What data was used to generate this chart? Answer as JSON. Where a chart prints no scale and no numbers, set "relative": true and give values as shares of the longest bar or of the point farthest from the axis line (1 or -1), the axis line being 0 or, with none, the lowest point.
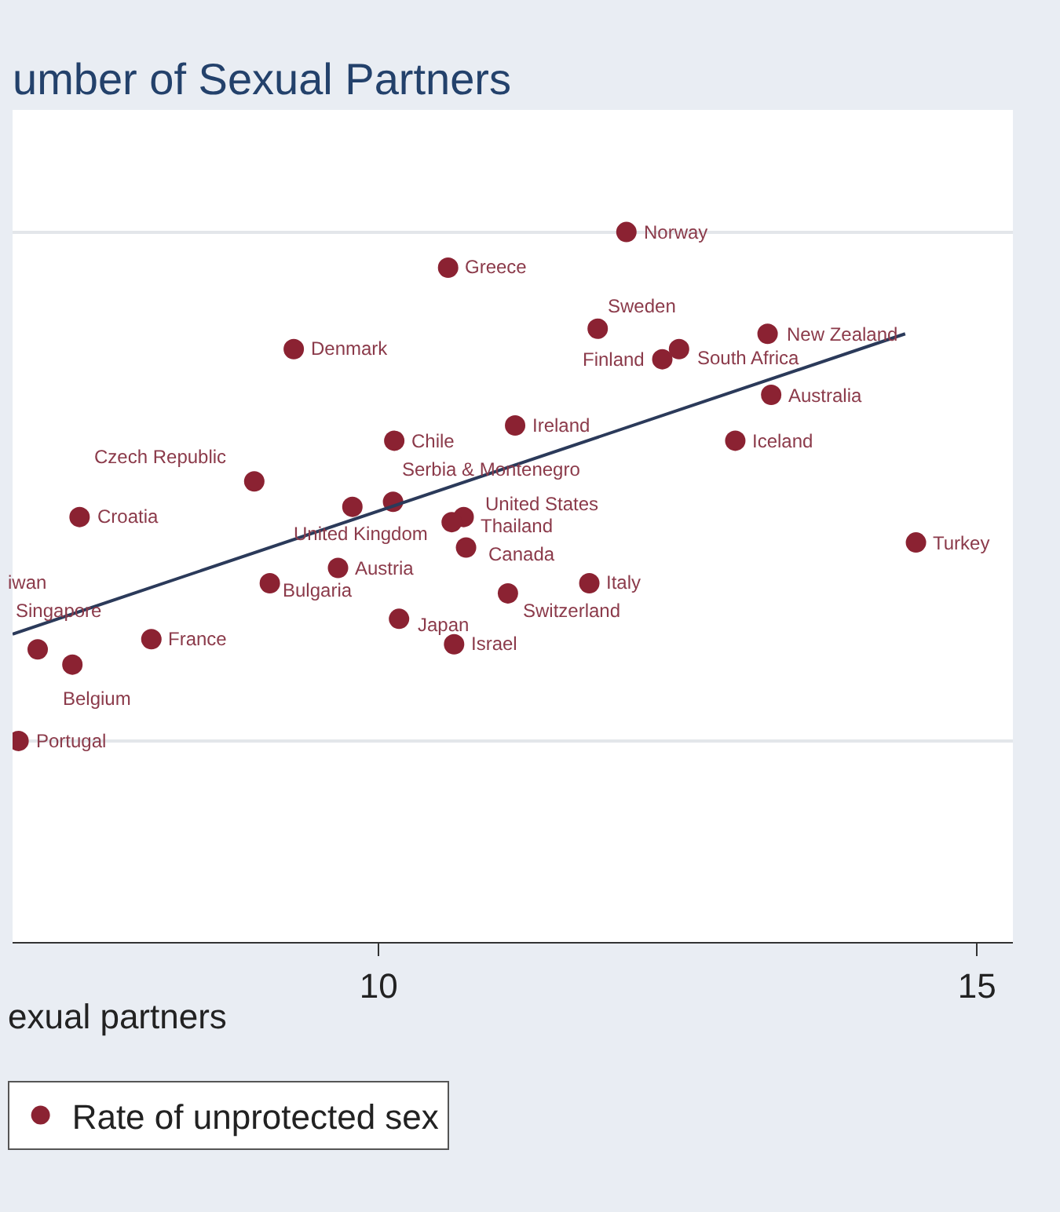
{
  "chart_data": {
    "type": "scatter",
    "title": "umber of Sexual Partners",
    "xlabel": "exual partners",
    "relative": true,
    "xlim": [
      6.94,
      15.3
    ],
    "xticks": [
      10,
      15
    ],
    "grid": "y",
    "legend": "bottom",
    "marker": "circle",
    "tick_labels": "x",
    "series": [
      {
        "name": "Rate of unprotected sex",
        "color": "#8b2232",
        "x": [
          12.07,
          10.58,
          11.83,
          13.25,
          12.51,
          12.37,
          9.29,
          13.28,
          11.14,
          12.98,
          10.13,
          8.96,
          10.12,
          9.78,
          10.71,
          10.61,
          10.73,
          7.5,
          14.49,
          9.66,
          9.09,
          11.76,
          11.08,
          10.17,
          8.1,
          10.63,
          7.15,
          7.44,
          6.99
        ],
        "values": [
          1.0,
          0.93,
          0.81,
          0.8,
          0.77,
          0.75,
          0.77,
          0.68,
          0.62,
          0.59,
          0.59,
          0.51,
          0.47,
          0.46,
          0.44,
          0.43,
          0.38,
          0.44,
          0.39,
          0.34,
          0.31,
          0.31,
          0.29,
          0.24,
          0.2,
          0.19,
          0.18,
          0.15,
          0.0
        ]
      },
      {
        "type": "line",
        "color": "#2b3a5a",
        "marker": "none",
        "x": [
          6.94,
          14.4
        ],
        "values": [
          0.21,
          0.8
        ]
      }
    ],
    "annotations": [
      {
        "text": "Norway",
        "x": 12.07,
        "y": 1.0
      },
      {
        "text": "Greece",
        "x": 10.58,
        "y": 0.93
      },
      {
        "text": "Sweden",
        "x": 11.83,
        "y": 0.81
      },
      {
        "text": "New Zealand",
        "x": 13.25,
        "y": 0.8
      },
      {
        "text": "South Africa",
        "x": 12.51,
        "y": 0.77
      },
      {
        "text": "Finland",
        "x": 12.37,
        "y": 0.75
      },
      {
        "text": "Denmark",
        "x": 9.29,
        "y": 0.77
      },
      {
        "text": "Australia",
        "x": 13.28,
        "y": 0.68
      },
      {
        "text": "Ireland",
        "x": 11.14,
        "y": 0.62
      },
      {
        "text": "Iceland",
        "x": 12.98,
        "y": 0.59
      },
      {
        "text": "Chile",
        "x": 10.13,
        "y": 0.59
      },
      {
        "text": "Czech Republic",
        "x": 8.96,
        "y": 0.51
      },
      {
        "text": "Serbia & Montenegro",
        "x": 10.12,
        "y": 0.47
      },
      {
        "text": "United Kingdom",
        "x": 9.78,
        "y": 0.46
      },
      {
        "text": "United States",
        "x": 10.71,
        "y": 0.44
      },
      {
        "text": "Thailand",
        "x": 10.61,
        "y": 0.43
      },
      {
        "text": "Canada",
        "x": 10.73,
        "y": 0.38
      },
      {
        "text": "Croatia",
        "x": 7.5,
        "y": 0.44
      },
      {
        "text": "Turkey",
        "x": 14.49,
        "y": 0.39
      },
      {
        "text": "Austria",
        "x": 9.66,
        "y": 0.34
      },
      {
        "text": "Bulgaria",
        "x": 9.09,
        "y": 0.31
      },
      {
        "text": "Italy",
        "x": 11.76,
        "y": 0.31
      },
      {
        "text": "Switzerland",
        "x": 11.08,
        "y": 0.29
      },
      {
        "text": "Japan",
        "x": 10.17,
        "y": 0.24
      },
      {
        "text": "France",
        "x": 8.1,
        "y": 0.2
      },
      {
        "text": "Israel",
        "x": 10.63,
        "y": 0.19
      },
      {
        "text": "Singapore",
        "x": 7.15,
        "y": 0.18
      },
      {
        "text": "Belgium",
        "x": 7.44,
        "y": 0.15
      },
      {
        "text": "Portugal",
        "x": 6.99,
        "y": 0.0
      },
      "iwan"
    ]
  }
}
